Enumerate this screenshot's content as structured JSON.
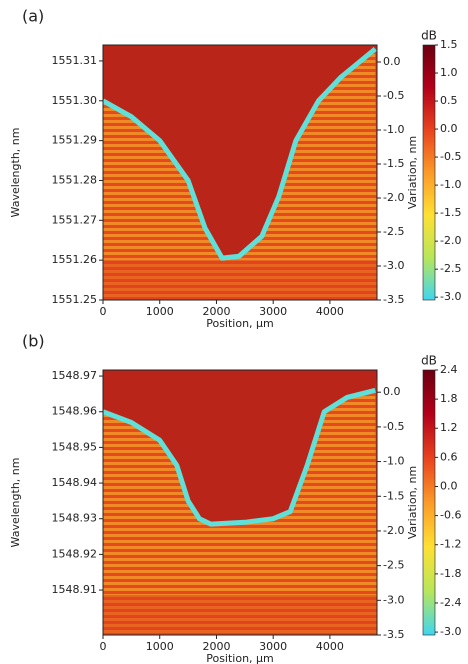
{
  "chart_data": [
    {
      "type": "heatmap",
      "panel_label": "(a)",
      "xlabel": "Position, μm",
      "ylabel": "Wavelength, nm",
      "y2label": "Variation, nm",
      "xlim": [
        0,
        4830
      ],
      "xticks": [
        0,
        1000,
        2000,
        3000,
        4000
      ],
      "ylim": [
        1551.25,
        1551.314
      ],
      "yticks": [
        1551.25,
        1551.26,
        1551.27,
        1551.28,
        1551.29,
        {
          "value": 1551.3,
          "label": "1551.30"
        },
        1551.31
      ],
      "y2lim": [
        -3.5,
        0.25
      ],
      "y2ticks": [
        -3.5,
        {
          "value": -3,
          "label": "-3.0"
        },
        -2.5,
        {
          "value": -2,
          "label": "-2.0"
        },
        -1.5,
        {
          "value": -1,
          "label": "-1.0"
        },
        -0.5,
        {
          "value": 0,
          "label": "0.0"
        }
      ],
      "colorbar": {
        "label": "dB",
        "lim": [
          -3.05,
          1.5
        ],
        "ticks": [
          {
            "value": -3,
            "label": "-3.0"
          },
          -2.5,
          {
            "value": -2,
            "label": "-2.0"
          },
          -1.5,
          {
            "value": -1,
            "label": "-1.0"
          },
          -0.5,
          {
            "value": 0,
            "label": "0.0"
          },
          0.5,
          {
            "value": 1,
            "label": "1.0"
          },
          1.5
        ],
        "colors": [
          "#3fd6f0",
          "#b8e65a",
          "#ffe033",
          "#fb9a29",
          "#e8431f",
          "#b3001a",
          "#6b0010"
        ]
      },
      "trace": {
        "color": "#5fe0d8",
        "x": [
          0,
          500,
          1000,
          1500,
          1800,
          2100,
          2400,
          2800,
          3100,
          3400,
          3800,
          4200,
          4800
        ],
        "y": [
          1551.3,
          1551.296,
          1551.29,
          1551.28,
          1551.268,
          1551.2605,
          1551.261,
          1551.266,
          1551.276,
          1551.29,
          1551.3,
          1551.306,
          1551.313
        ]
      }
    },
    {
      "type": "heatmap",
      "panel_label": "(b)",
      "xlabel": "Position, μm",
      "ylabel": "Wavelength, nm",
      "y2label": "Variation, nm",
      "xlim": [
        0,
        4830
      ],
      "xticks": [
        0,
        1000,
        2000,
        3000,
        4000
      ],
      "ylim": [
        1548.8974,
        1548.9717
      ],
      "yticks": [
        1548.91,
        1548.92,
        1548.93,
        1548.94,
        1548.95,
        1548.96,
        1548.97
      ],
      "y2lim": [
        -3.5,
        0.32
      ],
      "y2ticks": [
        -3.5,
        {
          "value": -3,
          "label": "-3.0"
        },
        -2.5,
        {
          "value": -2,
          "label": "-2.0"
        },
        -1.5,
        {
          "value": -1,
          "label": "-1.0"
        },
        -0.5,
        {
          "value": 0,
          "label": "0.0"
        }
      ],
      "colorbar": {
        "label": "dB",
        "lim": [
          -3.06,
          2.4
        ],
        "ticks": [
          {
            "value": -3,
            "label": "-3.0"
          },
          -2.4,
          -1.8,
          -1.2,
          -0.6,
          {
            "value": 0,
            "label": "0.0"
          },
          0.6,
          1.2,
          1.8,
          2.4
        ],
        "colors": [
          "#3fd6f0",
          "#b8e65a",
          "#ffe033",
          "#fb9a29",
          "#e8431f",
          "#b3001a",
          "#6b0010"
        ]
      },
      "trace": {
        "color": "#5fe0d8",
        "x": [
          0,
          500,
          1000,
          1300,
          1500,
          1700,
          1900,
          2500,
          3000,
          3300,
          3600,
          3900,
          4300,
          4800
        ],
        "y": [
          1548.96,
          1548.957,
          1548.952,
          1548.945,
          1548.935,
          1548.93,
          1548.9285,
          1548.929,
          1548.93,
          1548.932,
          1548.945,
          1548.96,
          1548.964,
          1548.966
        ]
      }
    }
  ]
}
